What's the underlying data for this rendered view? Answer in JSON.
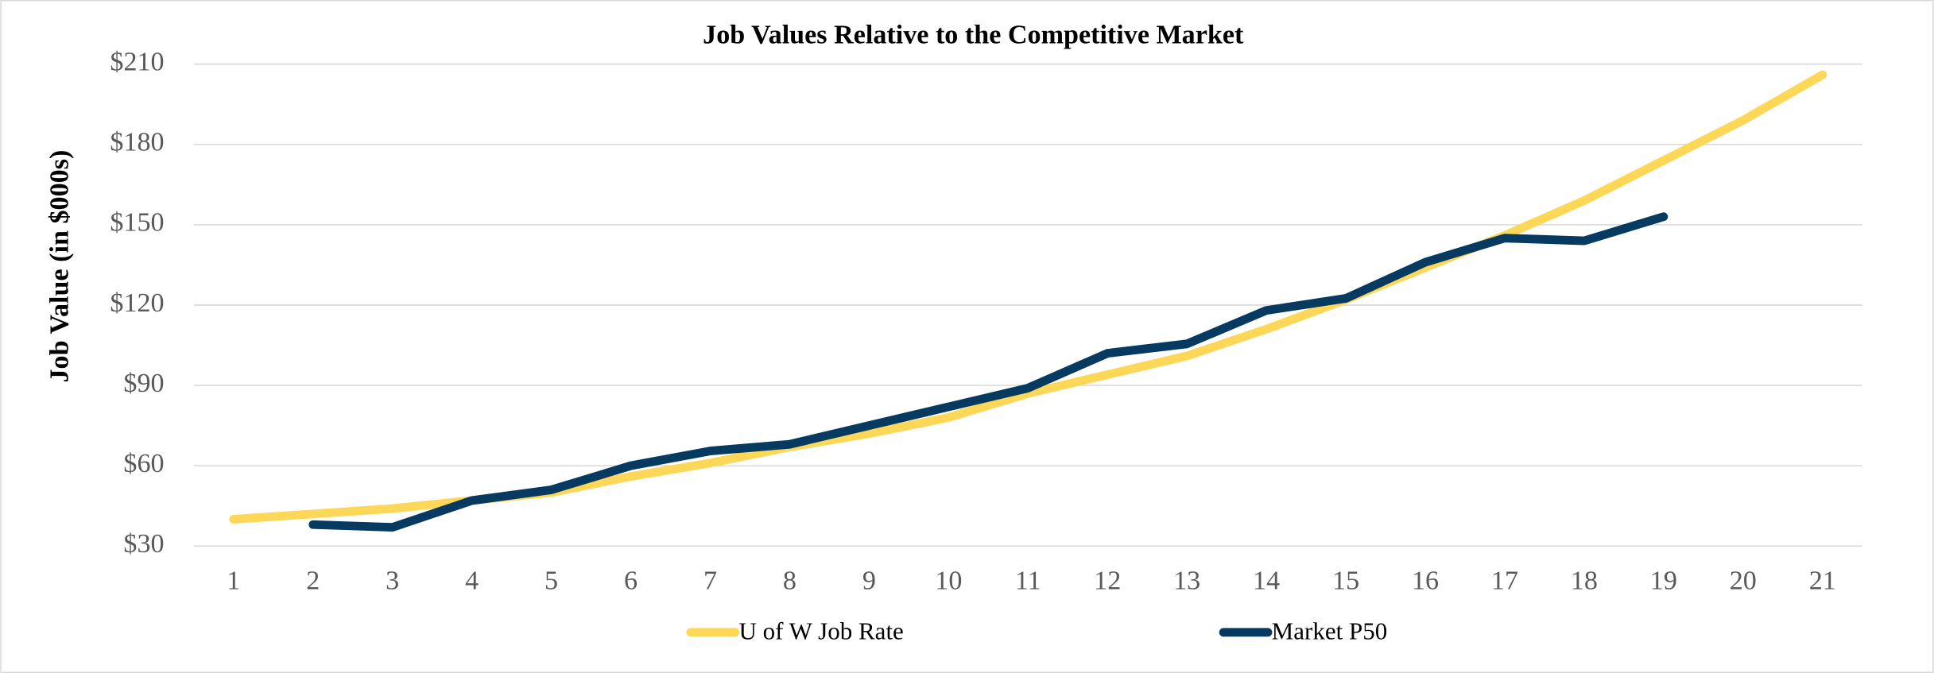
{
  "chart_data": {
    "type": "line",
    "title": "Job Values Relative to the Competitive Market",
    "y_label": "Job Value (in $000s)",
    "categories": [
      1,
      2,
      3,
      4,
      5,
      6,
      7,
      8,
      9,
      10,
      11,
      12,
      13,
      14,
      15,
      16,
      17,
      18,
      19,
      20,
      21
    ],
    "series": [
      {
        "name": "U of W Job Rate",
        "color": "#fdd757",
        "values": [
          40,
          42,
          44,
          47,
          50,
          56,
          61,
          67,
          72,
          78,
          87,
          94,
          101,
          111,
          122,
          134,
          146,
          159,
          174,
          189,
          206
        ]
      },
      {
        "name": "Market P50",
        "color": "#073a60",
        "values": [
          null,
          38,
          37,
          47,
          51,
          60,
          65.5,
          68,
          75,
          82,
          89,
          102,
          105.5,
          118,
          122.5,
          136,
          145,
          144,
          153,
          null,
          null
        ]
      }
    ],
    "ylim": [
      30,
      210
    ],
    "yticks": [
      {
        "value": 30,
        "label": "$30"
      },
      {
        "value": 60,
        "label": "$60"
      },
      {
        "value": 90,
        "label": "$90"
      },
      {
        "value": 120,
        "label": "$120"
      },
      {
        "value": 150,
        "label": "$150"
      },
      {
        "value": 180,
        "label": "$180"
      },
      {
        "value": 210,
        "label": "$210"
      }
    ],
    "grid": true,
    "legend": "bottom"
  }
}
